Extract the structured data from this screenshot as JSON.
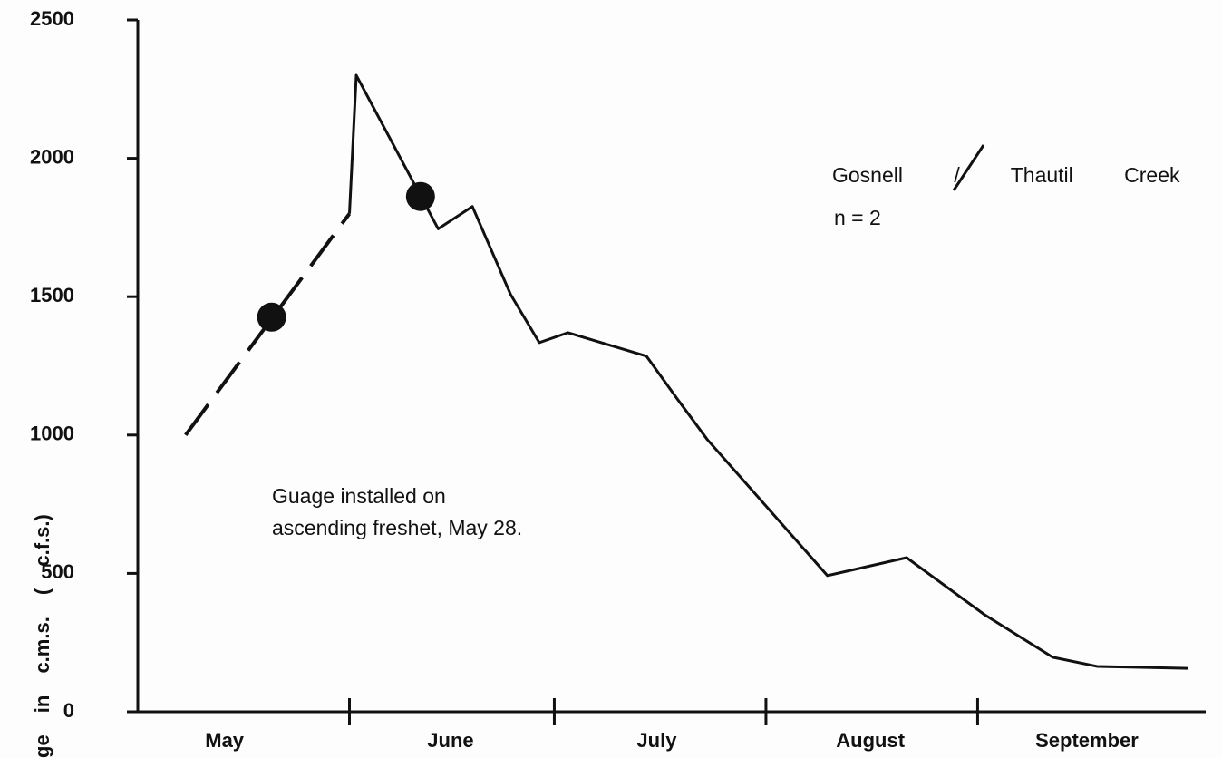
{
  "chart_data": {
    "type": "line",
    "title": "Gosnell / Thautil Creek",
    "subtitle": "n = 2",
    "y_label": "ge in c.m.s. ( c.f.s.)",
    "annotations": [
      "Guage installed on",
      "ascending freshet, May 28."
    ],
    "xlim": [
      0,
      156
    ],
    "xticks": [
      {
        "value": 12.7,
        "label": "May"
      },
      {
        "value": 45.8,
        "label": "June"
      },
      {
        "value": 76,
        "label": "July"
      },
      {
        "value": 107.3,
        "label": "August"
      },
      {
        "value": 139,
        "label": "September"
      }
    ],
    "x_boundaries": [
      31,
      61,
      92,
      123
    ],
    "ylim": [
      0,
      2500
    ],
    "yticks": [
      0,
      500,
      1000,
      1500,
      2000,
      2500
    ],
    "grid": false,
    "series": [
      {
        "color": "#111111",
        "dashed": true,
        "x": [
          7,
          31
        ],
        "values": [
          1000,
          1800
        ]
      },
      {
        "color": "#111111",
        "dashed": false,
        "x": [
          31,
          32,
          44,
          49,
          54.6,
          58.8,
          63,
          74.5,
          79,
          83.4,
          101,
          112.6,
          124,
          134,
          140.5,
          153.8
        ],
        "values": [
          1800,
          2300,
          1745,
          1826,
          1508,
          1334,
          1370,
          1285,
          1131,
          984,
          492,
          557,
          351,
          197,
          164,
          157
        ]
      },
      {
        "color": "#111111",
        "marker": "dot",
        "x": [
          19.6,
          41.4
        ],
        "values": [
          1426,
          1862
        ]
      }
    ]
  }
}
